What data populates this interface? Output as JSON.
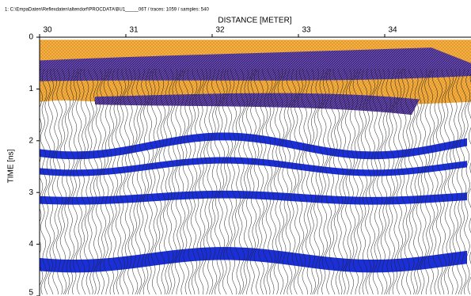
{
  "header": {
    "title": "1: C:\\EmpaDaten\\Reflexdaten\\altendorf\\PROCDATA\\BU1_____06T / traces: 1059 / samples: 540"
  },
  "chart_data": {
    "type": "radargram",
    "x_label": "DISTANCE [METER]",
    "y_label": "TIME [ns]",
    "xlim": [
      30,
      35
    ],
    "xticks": [
      30,
      31,
      32,
      33,
      34
    ],
    "ylim": [
      0,
      5
    ],
    "yticks": [
      0,
      1,
      2,
      3,
      4,
      5
    ]
  }
}
